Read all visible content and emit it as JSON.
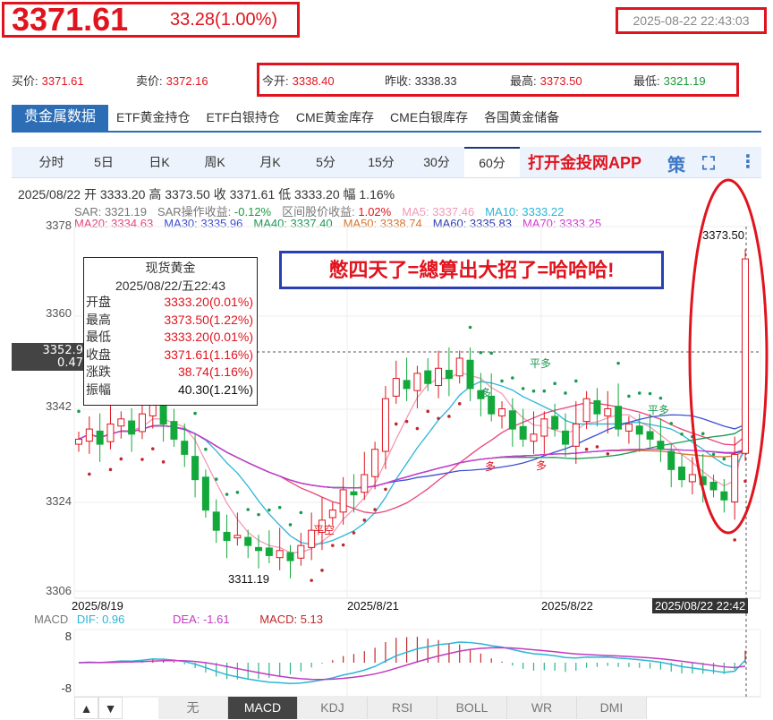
{
  "header": {
    "price": "3371.61",
    "change": "33.28(1.00%)",
    "timestamp": "2025-08-22 22:43:03"
  },
  "quotes": {
    "bid_label": "买价:",
    "bid": "3371.61",
    "ask_label": "卖价:",
    "ask": "3372.16",
    "open_label": "今开:",
    "open": "3338.40",
    "prev_label": "昨收:",
    "prev": "3338.33",
    "high_label": "最高:",
    "high": "3373.50",
    "low_label": "最低:",
    "low": "3321.19"
  },
  "data_tabs": [
    "贵金属数据",
    "ETF黄金持仓",
    "ETF白银持仓",
    "CME黄金库存",
    "CME白银库存",
    "各国黄金储备"
  ],
  "period_tabs": [
    "分时",
    "5日",
    "日K",
    "周K",
    "月K",
    "5分",
    "15分",
    "30分",
    "60分"
  ],
  "active_period": "60分",
  "app_link": "打开金投网APP",
  "strategy_icon_label": "策",
  "info_line": "2025/08/22  开 3333.20  高 3373.50  收 3371.61  低 3333.20  幅 1.16%",
  "indicators_row1": [
    {
      "label": "SAR: 3321.19",
      "color": "#777"
    },
    {
      "label": "SAR操作收益: ",
      "value": "-0.12%",
      "color": "#777",
      "vcolor": "#1a9a3a"
    },
    {
      "label": "区间股价收益: ",
      "value": "1.02%",
      "color": "#777",
      "vcolor": "#e0141e"
    },
    {
      "label": "MA5: 3337.46",
      "color": "#f29bb5"
    },
    {
      "label": "MA10: 3333.22",
      "color": "#2bb5d6"
    }
  ],
  "indicators_row2": [
    {
      "label": "MA20: 3334.63",
      "color": "#e8457a"
    },
    {
      "label": "MA30: 3335.96",
      "color": "#3d4fd6"
    },
    {
      "label": "MA40: 3337.40",
      "color": "#1a9a50"
    },
    {
      "label": "MA50: 3338.74",
      "color": "#d8762b"
    },
    {
      "label": "MA60: 3335.83",
      "color": "#3040b0"
    },
    {
      "label": "MA70: 3333.25",
      "color": "#d23ad6"
    }
  ],
  "tooltip": {
    "title": "现货黄金",
    "date": "2025/08/22/五22:43",
    "rows": [
      {
        "label": "开盘",
        "value": "3333.20(0.01%)"
      },
      {
        "label": "最高",
        "value": "3373.50(1.22%)"
      },
      {
        "label": "最低",
        "value": "3333.20(0.01%)"
      },
      {
        "label": "收盘",
        "value": "3371.61(1.16%)"
      },
      {
        "label": "涨跌",
        "value": "38.74(1.16%)"
      },
      {
        "label": "振幅",
        "value": "40.30(1.21%)"
      }
    ]
  },
  "annotation": "憋四天了=總算出大招了=哈哈哈!",
  "crosshair": {
    "price": "3352.9",
    "pct": "0.47"
  },
  "chart_data": {
    "type": "candlestick",
    "y_ticks": [
      "3378",
      "3360",
      "3342",
      "3324",
      "3306"
    ],
    "ylim": [
      3306,
      3378
    ],
    "x_labels": [
      "2025/8/19",
      "2025/8/21",
      "2025/8/22"
    ],
    "cursor_label": "2025/08/22 22:42",
    "max_label": "3373.50",
    "min_label": "3311.19",
    "signals": [
      "平多",
      "多",
      "平空",
      "平多",
      "多",
      "多"
    ],
    "close": [
      3336,
      3338,
      3335,
      3339,
      3340,
      3337,
      3341,
      3343,
      3339,
      3336,
      3333,
      3328,
      3322,
      3318,
      3316,
      3317,
      3315,
      3314,
      3313,
      3314,
      3312,
      3315,
      3318,
      3320,
      3322,
      3326,
      3325,
      3329,
      3334,
      3344,
      3348,
      3346,
      3349,
      3347,
      3350,
      3348,
      3352,
      3346,
      3344,
      3341,
      3342,
      3338,
      3336,
      3337,
      3340,
      3338,
      3335,
      3339,
      3344,
      3341,
      3342,
      3338,
      3339,
      3337,
      3336,
      3334,
      3330,
      3328,
      3329,
      3327,
      3326,
      3324,
      3333,
      3371.61
    ],
    "colors": {
      "up": "#e0141e",
      "down": "#12a83a"
    },
    "macd": {
      "dif": "DIF: 0.96",
      "dea": "DEA: -1.61",
      "macd": "MACD: 5.13",
      "label": "MACD",
      "y_ticks": [
        "8",
        "-8"
      ],
      "ylim": [
        -8,
        8
      ]
    }
  },
  "indicator_buttons": [
    "无",
    "MACD",
    "KDJ",
    "RSI",
    "BOLL",
    "WR",
    "DMI"
  ],
  "active_indicator": "MACD",
  "arrows": [
    "▲",
    "▼"
  ]
}
